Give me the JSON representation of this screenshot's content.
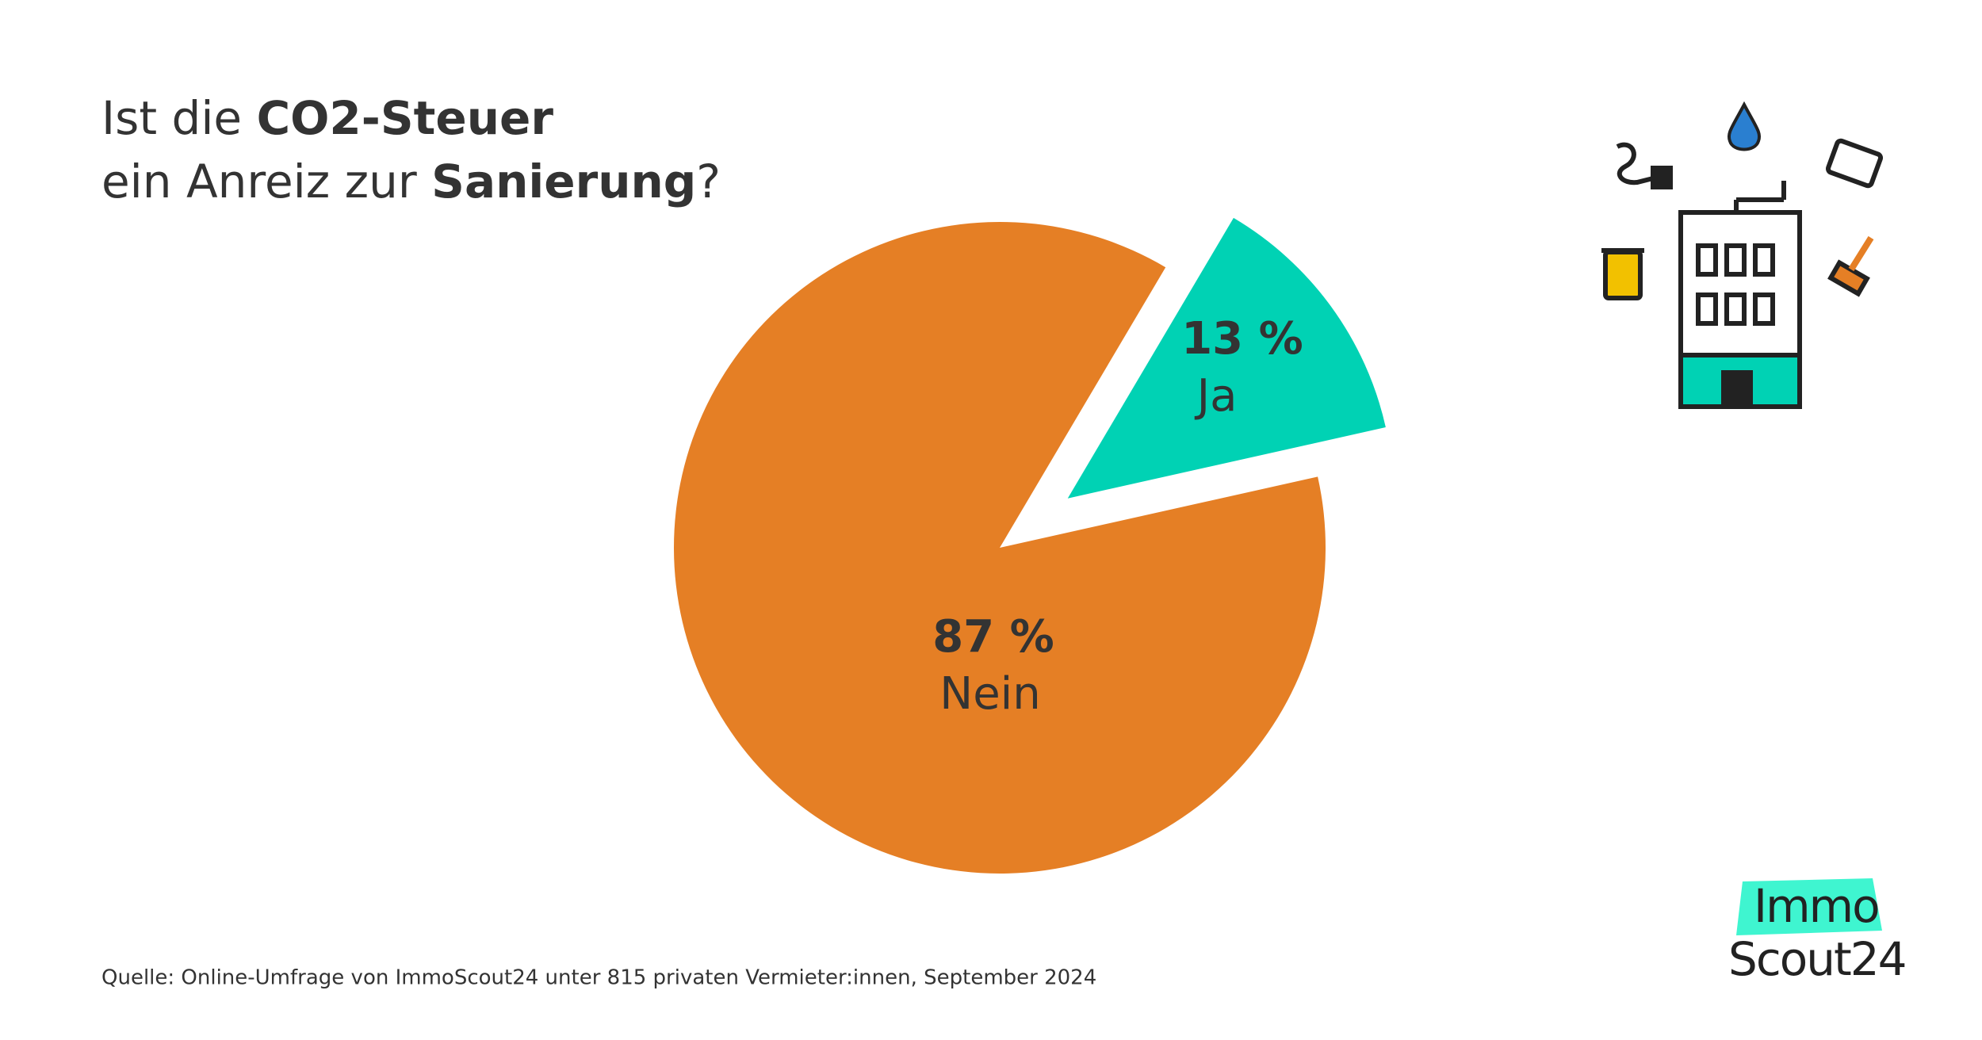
{
  "chart_data": {
    "type": "pie",
    "title": [
      [
        {
          "text": "Ist die "
        },
        {
          "text": "CO2-Steuer",
          "bold": true
        }
      ],
      [
        {
          "text": "ein Anreiz zur "
        },
        {
          "text": "Sanierung",
          "bold": true
        },
        {
          "text": "?"
        }
      ]
    ],
    "categories": [
      "Ja",
      "Nein"
    ],
    "values": [
      13,
      87
    ],
    "value_labels": [
      "13 %",
      "87 %"
    ],
    "colors": [
      "#00d2b4",
      "#e57f25"
    ],
    "source": "Quelle: Online-Umfrage von ImmoScout24 unter 815 privaten Vermieter:innen, September 2024",
    "logo": [
      "Immo",
      "Scout24"
    ]
  }
}
